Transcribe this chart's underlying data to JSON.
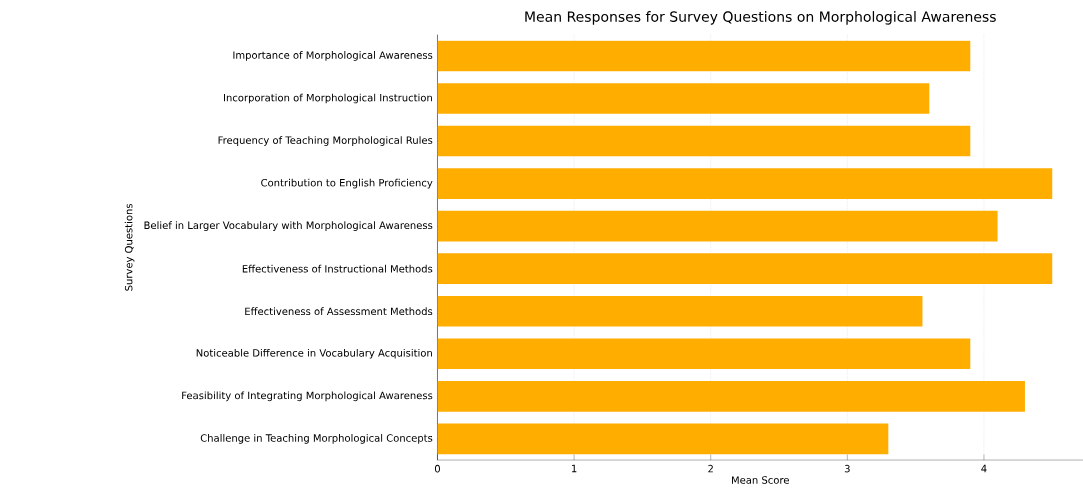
{
  "chart_data": {
    "type": "bar",
    "orientation": "horizontal",
    "title": "Mean Responses for Survey Questions on Morphological Awareness",
    "xlabel": "Mean Score",
    "ylabel": "Survey Questions",
    "categories": [
      "Importance of Morphological Awareness",
      "Incorporation of Morphological Instruction",
      "Frequency of Teaching Morphological Rules",
      "Contribution to English Proficiency",
      "Belief in Larger Vocabulary with Morphological Awareness",
      "Effectiveness of Instructional Methods",
      "Effectiveness of Assessment Methods",
      "Noticeable Difference in Vocabulary Acquisition",
      "Feasibility of Integrating Morphological Awareness",
      "Challenge in Teaching Morphological Concepts"
    ],
    "values": [
      3.9,
      3.6,
      3.9,
      4.5,
      4.1,
      4.5,
      3.55,
      3.9,
      4.3,
      3.3
    ],
    "color": "#ffae00",
    "xlim": [
      0,
      4.725
    ],
    "xticks": [
      0,
      1,
      2,
      3,
      4
    ],
    "grid": "x"
  }
}
